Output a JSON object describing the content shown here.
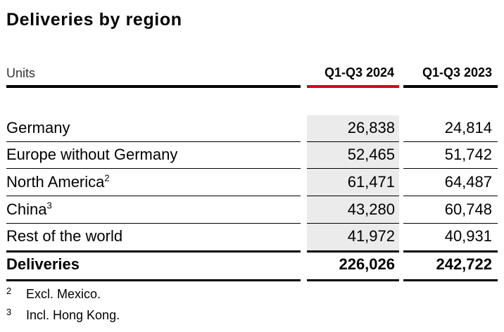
{
  "title": "Deliveries by region",
  "header": {
    "units": "Units",
    "col1": "Q1-Q3 2024",
    "col2": "Q1-Q3 2023"
  },
  "accent_color": "#d5001c",
  "rows": [
    {
      "label": "Germany",
      "sup": "",
      "v2024": "26,838",
      "v2023": "24,814"
    },
    {
      "label": "Europe without Germany",
      "sup": "",
      "v2024": "52,465",
      "v2023": "51,742"
    },
    {
      "label": "North America",
      "sup": "2",
      "v2024": "61,471",
      "v2023": "64,487"
    },
    {
      "label": "China",
      "sup": "3",
      "v2024": "43,280",
      "v2023": "60,748"
    },
    {
      "label": "Rest of the world",
      "sup": "",
      "v2024": "41,972",
      "v2023": "40,931"
    }
  ],
  "total": {
    "label": "Deliveries",
    "v2024": "226,026",
    "v2023": "242,722"
  },
  "footnotes": [
    {
      "num": "2",
      "text": "Excl. Mexico."
    },
    {
      "num": "3",
      "text": "Incl. Hong Kong."
    }
  ]
}
